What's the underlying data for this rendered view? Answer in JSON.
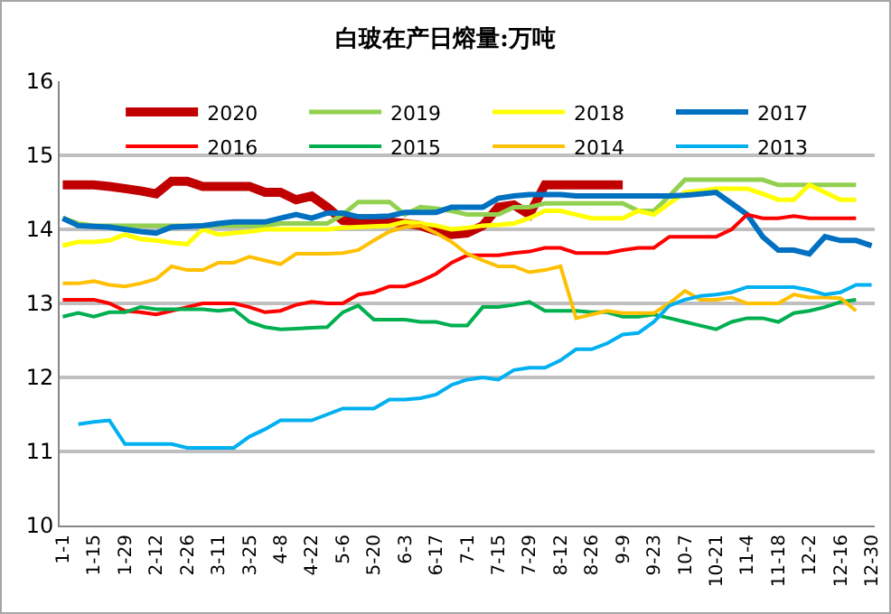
{
  "chart_data": {
    "type": "line",
    "title": "白玻在产日熔量:万吨",
    "categories": [
      "1-1",
      null,
      "1-15",
      null,
      "1-29",
      null,
      "2-12",
      null,
      "2-26",
      null,
      "3-11",
      null,
      "3-25",
      null,
      "4-8",
      null,
      "4-22",
      null,
      "5-6",
      null,
      "5-20",
      null,
      "6-3",
      null,
      "6-17",
      null,
      "7-1",
      null,
      "7-15",
      null,
      "7-29",
      null,
      "8-12",
      null,
      "8-26",
      null,
      "9-9",
      null,
      "9-23",
      null,
      "10-7",
      null,
      "10-21",
      null,
      "11-4",
      null,
      "11-18",
      null,
      "12-2",
      null,
      "12-16",
      null,
      "12-30"
    ],
    "series": [
      {
        "name": "2020",
        "color": "#c00000",
        "values": [
          14.6,
          14.6,
          14.6,
          14.58,
          14.55,
          14.52,
          14.48,
          14.65,
          14.65,
          14.58,
          14.58,
          14.58,
          14.58,
          14.5,
          14.5,
          14.4,
          14.45,
          14.3,
          14.12,
          14.1,
          14.1,
          14.1,
          14.08,
          14.05,
          13.98,
          13.93,
          13.95,
          14.05,
          14.3,
          14.33,
          14.2,
          14.6,
          14.6,
          14.6,
          14.6,
          14.6,
          14.6,
          null,
          null,
          null,
          null,
          null,
          null,
          null,
          null,
          null,
          null,
          null,
          null,
          null,
          null,
          null,
          null
        ]
      },
      {
        "name": "2019",
        "color": "#92d050",
        "values": [
          14.15,
          14.08,
          14.05,
          14.05,
          14.05,
          14.05,
          14.05,
          14.05,
          14.05,
          14.05,
          14.05,
          14.05,
          14.05,
          14.05,
          14.08,
          14.08,
          14.08,
          14.08,
          14.2,
          14.37,
          14.37,
          14.37,
          14.2,
          14.3,
          14.28,
          14.25,
          14.2,
          14.2,
          14.2,
          14.3,
          14.3,
          14.35,
          14.35,
          14.35,
          14.35,
          14.35,
          14.35,
          14.25,
          14.25,
          14.45,
          14.67,
          14.67,
          14.67,
          14.67,
          14.67,
          14.67,
          14.6,
          14.6,
          14.6,
          14.6,
          14.6,
          14.6,
          null
        ]
      },
      {
        "name": "2018",
        "color": "#ffff00",
        "values": [
          13.78,
          13.83,
          13.83,
          13.85,
          13.93,
          13.87,
          13.85,
          13.82,
          13.8,
          14.0,
          13.93,
          13.95,
          13.97,
          14.0,
          14.0,
          14.0,
          14.0,
          14.0,
          14.02,
          14.03,
          14.04,
          14.05,
          14.1,
          14.08,
          14.05,
          14.0,
          14.02,
          14.05,
          14.06,
          14.08,
          14.15,
          14.25,
          14.25,
          14.2,
          14.15,
          14.15,
          14.15,
          14.25,
          14.2,
          14.35,
          14.5,
          14.52,
          14.55,
          14.55,
          14.55,
          14.48,
          14.4,
          14.4,
          14.6,
          14.5,
          14.4,
          14.4,
          null
        ]
      },
      {
        "name": "2017",
        "color": "#0070c0",
        "values": [
          14.15,
          14.05,
          14.04,
          14.03,
          14.0,
          13.97,
          13.95,
          14.03,
          14.04,
          14.05,
          14.08,
          14.1,
          14.1,
          14.1,
          14.15,
          14.2,
          14.15,
          14.22,
          14.22,
          14.17,
          14.17,
          14.18,
          14.23,
          14.23,
          14.23,
          14.3,
          14.3,
          14.3,
          14.42,
          14.45,
          14.47,
          14.47,
          14.47,
          14.45,
          14.45,
          14.45,
          14.45,
          14.45,
          14.45,
          14.45,
          14.46,
          14.48,
          14.5,
          14.35,
          14.2,
          13.9,
          13.72,
          13.72,
          13.67,
          13.9,
          13.85,
          13.85,
          13.78
        ]
      },
      {
        "name": "2016",
        "color": "#ff0000",
        "values": [
          13.05,
          13.05,
          13.05,
          13.0,
          12.9,
          12.88,
          12.85,
          12.9,
          12.95,
          13.0,
          13.0,
          13.0,
          12.95,
          12.88,
          12.9,
          12.98,
          13.02,
          13.0,
          13.0,
          13.12,
          13.15,
          13.23,
          13.23,
          13.3,
          13.4,
          13.55,
          13.65,
          13.65,
          13.65,
          13.68,
          13.7,
          13.75,
          13.75,
          13.68,
          13.68,
          13.68,
          13.72,
          13.75,
          13.75,
          13.9,
          13.9,
          13.9,
          13.9,
          14.0,
          14.2,
          14.15,
          14.15,
          14.18,
          14.15,
          14.15,
          14.15,
          14.15,
          null
        ]
      },
      {
        "name": "2015",
        "color": "#00b050",
        "values": [
          12.82,
          12.87,
          12.82,
          12.88,
          12.88,
          12.95,
          12.92,
          12.92,
          12.92,
          12.92,
          12.9,
          12.92,
          12.75,
          12.68,
          12.65,
          12.66,
          12.67,
          12.68,
          12.88,
          12.97,
          12.78,
          12.78,
          12.78,
          12.75,
          12.75,
          12.7,
          12.7,
          12.95,
          12.95,
          12.98,
          13.02,
          12.9,
          12.9,
          12.9,
          12.88,
          12.88,
          12.82,
          12.82,
          12.85,
          12.8,
          12.75,
          12.7,
          12.65,
          12.75,
          12.8,
          12.8,
          12.75,
          12.87,
          12.9,
          12.95,
          13.02,
          13.05,
          null
        ]
      },
      {
        "name": "2014",
        "color": "#ffc000",
        "values": [
          13.27,
          13.27,
          13.3,
          13.25,
          13.23,
          13.27,
          13.33,
          13.5,
          13.45,
          13.45,
          13.55,
          13.55,
          13.63,
          13.58,
          13.53,
          13.67,
          13.67,
          13.67,
          13.68,
          13.72,
          13.85,
          13.97,
          14.03,
          14.05,
          13.95,
          13.83,
          13.67,
          13.58,
          13.5,
          13.5,
          13.42,
          13.45,
          13.5,
          12.8,
          12.85,
          12.9,
          12.87,
          12.87,
          12.87,
          13.0,
          13.17,
          13.05,
          13.05,
          13.08,
          13.0,
          13.0,
          13.0,
          13.12,
          13.08,
          13.08,
          13.07,
          12.9,
          null
        ]
      },
      {
        "name": "2013",
        "color": "#00b0f0",
        "values": [
          null,
          11.37,
          11.4,
          11.42,
          11.1,
          11.1,
          11.1,
          11.1,
          11.05,
          11.05,
          11.05,
          11.05,
          11.2,
          11.3,
          11.42,
          11.42,
          11.42,
          11.5,
          11.58,
          11.58,
          11.58,
          11.7,
          11.7,
          11.72,
          11.77,
          11.9,
          11.97,
          12.0,
          11.97,
          12.1,
          12.13,
          12.13,
          12.23,
          12.38,
          12.38,
          12.46,
          12.58,
          12.6,
          12.75,
          12.97,
          13.05,
          13.1,
          13.12,
          13.15,
          13.22,
          13.22,
          13.22,
          13.22,
          13.18,
          13.12,
          13.15,
          13.25,
          13.25
        ]
      }
    ],
    "ylim": [
      10,
      16
    ],
    "yticks": [
      10,
      11,
      12,
      13,
      14,
      15,
      16
    ],
    "grid": "y",
    "legend": "top",
    "marker": "none",
    "line_style": "solid"
  }
}
